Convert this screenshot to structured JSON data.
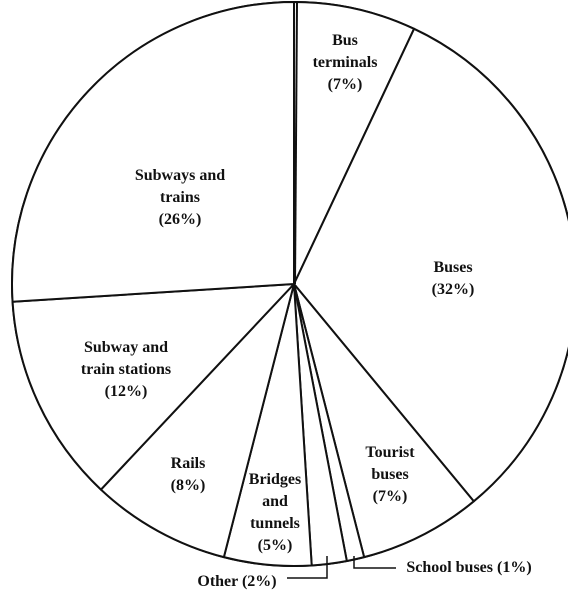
{
  "chart_data": {
    "type": "pie",
    "title": "",
    "slices": [
      {
        "label": "Bus terminals",
        "lines": [
          "Bus",
          "terminals",
          "(7%)"
        ],
        "value": 7
      },
      {
        "label": "Buses",
        "lines": [
          "Buses",
          "(32%)"
        ],
        "value": 32
      },
      {
        "label": "Tourist buses",
        "lines": [
          "Tourist",
          "buses",
          "(7%)"
        ],
        "value": 7
      },
      {
        "label": "School buses",
        "lines": [
          "School buses (1%)"
        ],
        "value": 1
      },
      {
        "label": "Other",
        "lines": [
          "Other (2%)"
        ],
        "value": 2
      },
      {
        "label": "Bridges and tunnels",
        "lines": [
          "Bridges",
          "and",
          "tunnels",
          "(5%)"
        ],
        "value": 5
      },
      {
        "label": "Rails",
        "lines": [
          "Rails",
          "(8%)"
        ],
        "value": 8
      },
      {
        "label": "Subway and train stations",
        "lines": [
          "Subway and",
          "train stations",
          "(12%)"
        ],
        "value": 12
      },
      {
        "label": "Subways and trains",
        "lines": [
          "Subways and",
          "trains",
          "(26%)"
        ],
        "value": 26
      }
    ],
    "start": "12 o'clock",
    "direction": "clockwise",
    "colors": {
      "fill": "#ffffff",
      "stroke": "#111111"
    }
  }
}
